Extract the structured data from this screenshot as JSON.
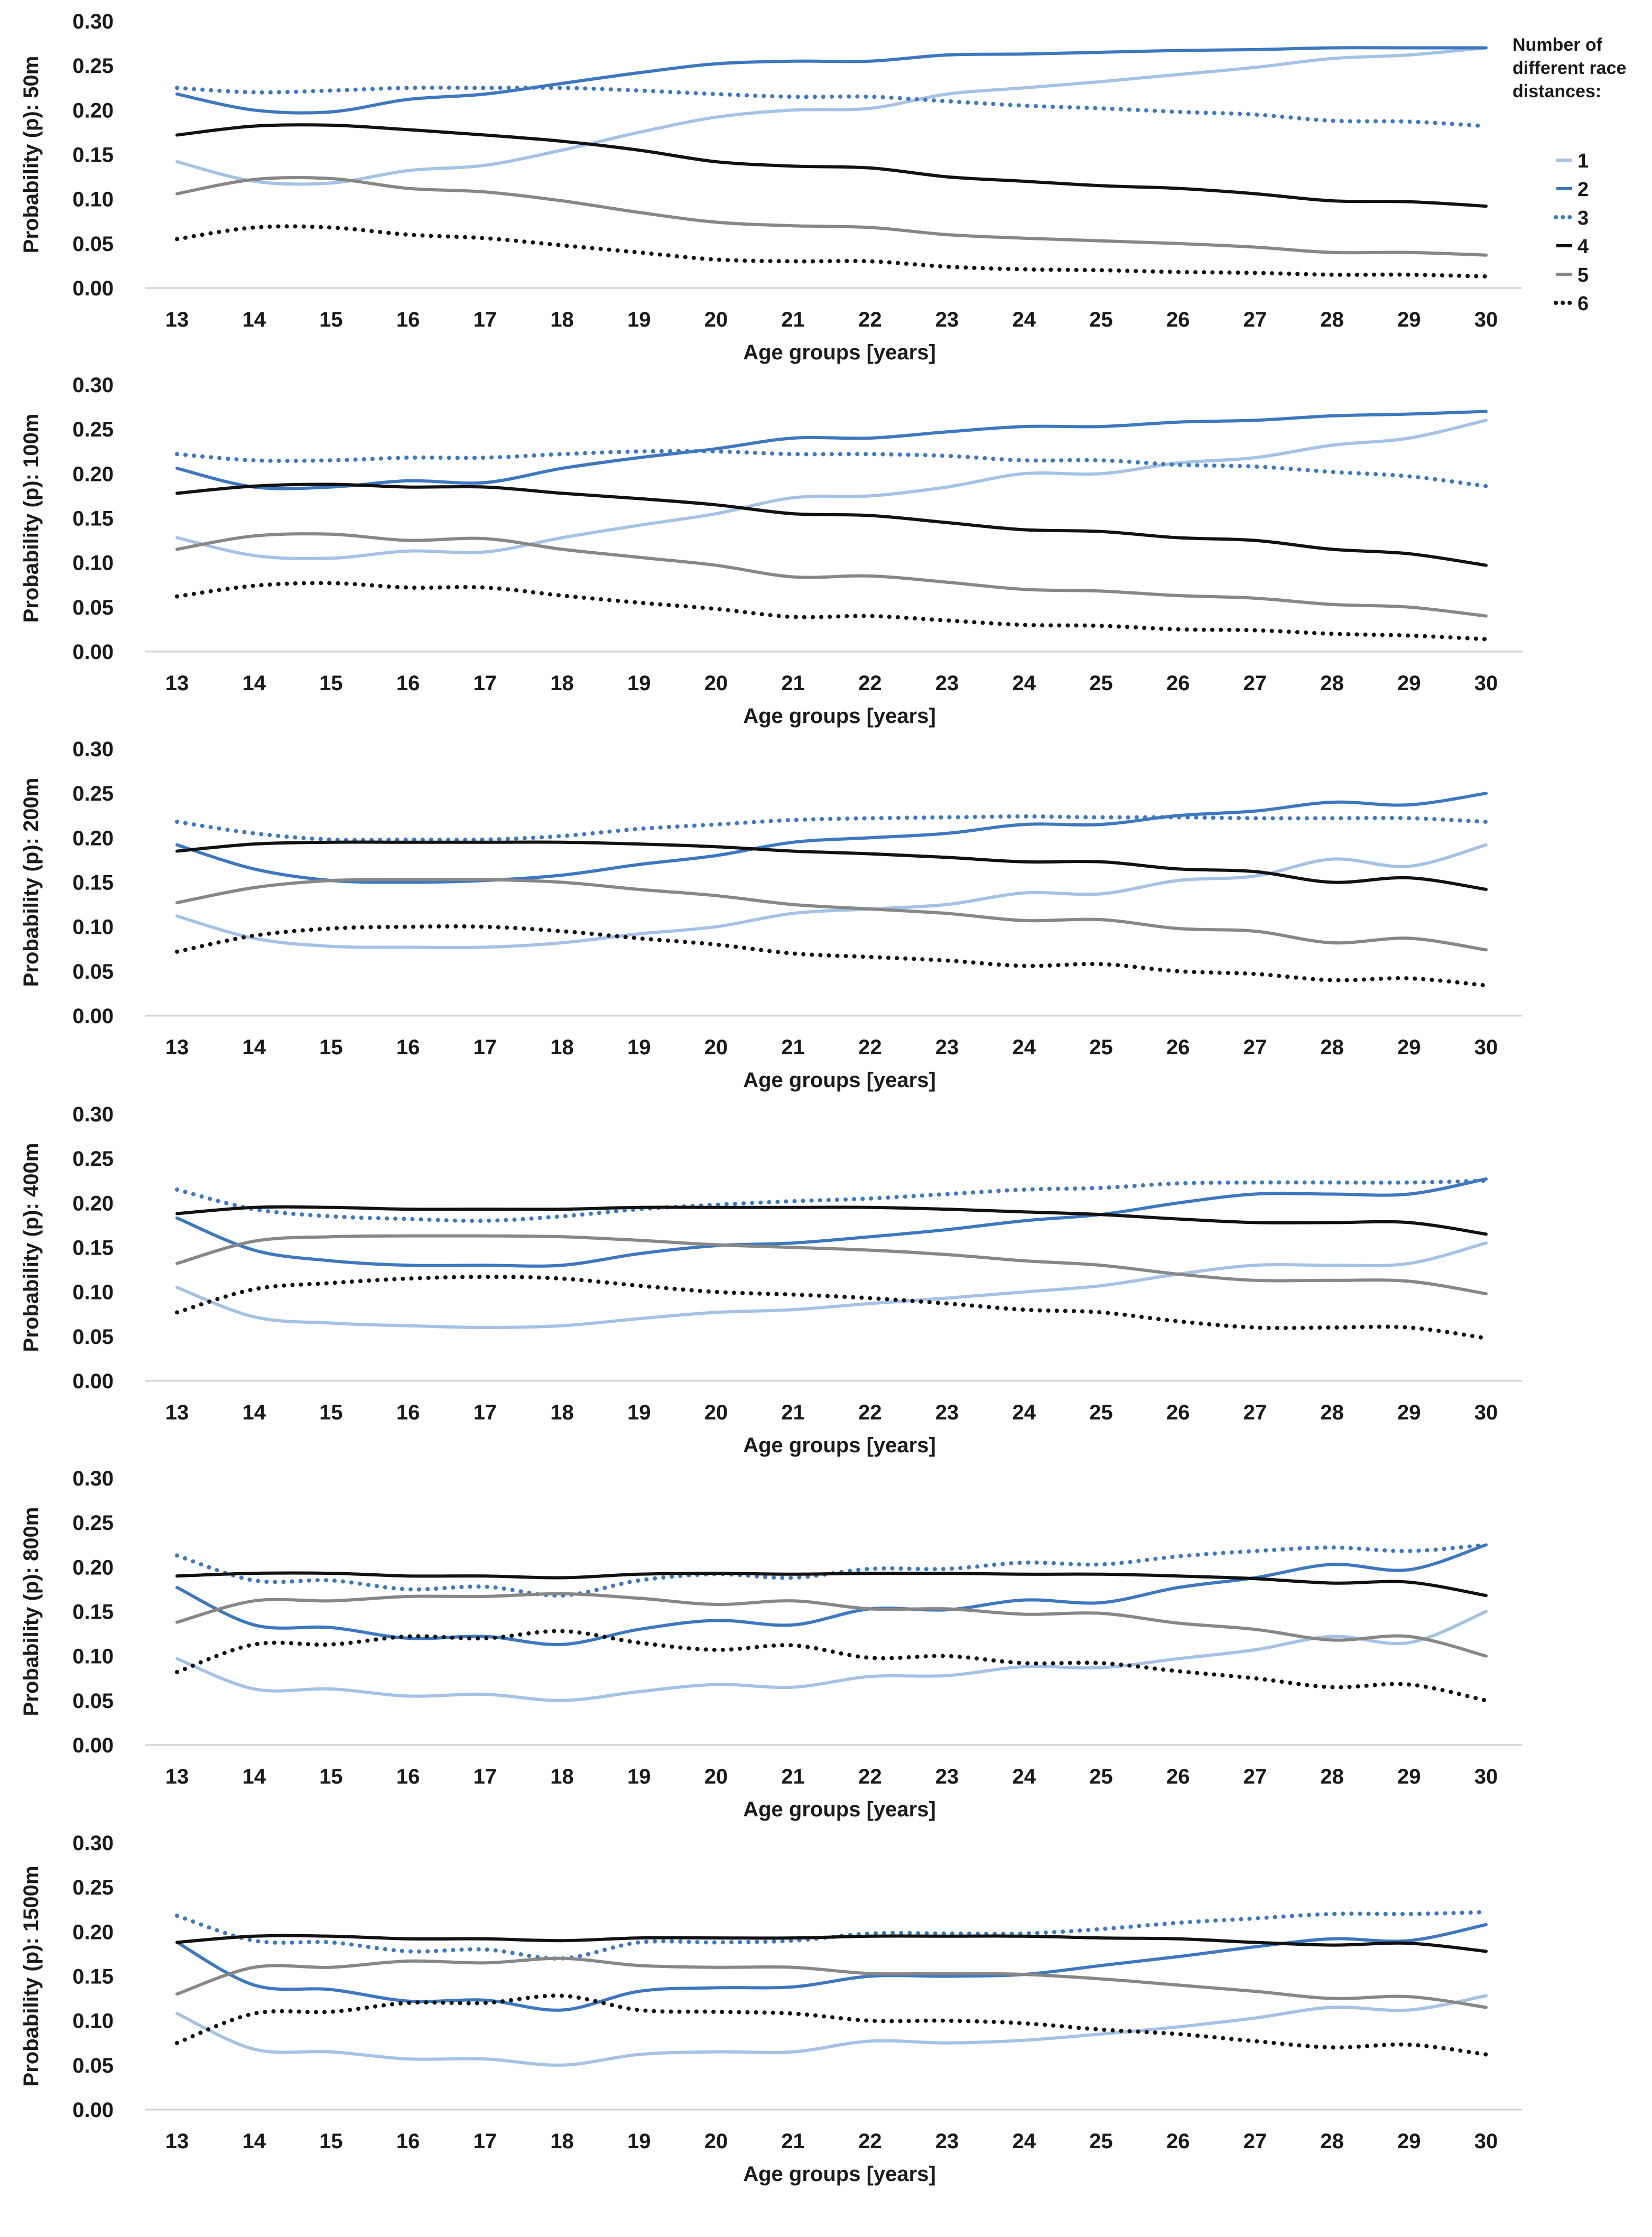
{
  "legend": {
    "title_lines": [
      "Number of",
      "different race",
      "distances:"
    ],
    "items": [
      "1",
      "2",
      "3",
      "4",
      "5",
      "6"
    ]
  },
  "series_styles": [
    {
      "name": "1",
      "color": "#a4c2e6",
      "dash": "solid"
    },
    {
      "name": "2",
      "color": "#3d78bf",
      "dash": "solid"
    },
    {
      "name": "3",
      "color": "#3d78bf",
      "dash": "dotted"
    },
    {
      "name": "4",
      "color": "#111111",
      "dash": "solid"
    },
    {
      "name": "5",
      "color": "#878787",
      "dash": "solid"
    },
    {
      "name": "6",
      "color": "#111111",
      "dash": "dotted"
    }
  ],
  "chart_data": [
    {
      "type": "line",
      "title": "",
      "xlabel": "Age groups [years]",
      "ylabel": "Probability (p): 50m",
      "ylim": [
        0,
        0.3
      ],
      "yticks": [
        "0.00",
        "0.05",
        "0.10",
        "0.15",
        "0.20",
        "0.25",
        "0.30"
      ],
      "categories": [
        "13",
        "14",
        "15",
        "16",
        "17",
        "18",
        "19",
        "20",
        "21",
        "22",
        "23",
        "24",
        "25",
        "26",
        "27",
        "28",
        "29",
        "30"
      ],
      "series": [
        {
          "name": "1",
          "values": [
            0.142,
            0.12,
            0.118,
            0.132,
            0.138,
            0.155,
            0.175,
            0.192,
            0.2,
            0.202,
            0.218,
            0.225,
            0.232,
            0.24,
            0.248,
            0.258,
            0.262,
            0.27
          ]
        },
        {
          "name": "2",
          "values": [
            0.218,
            0.2,
            0.198,
            0.212,
            0.218,
            0.23,
            0.242,
            0.252,
            0.255,
            0.255,
            0.262,
            0.263,
            0.265,
            0.267,
            0.268,
            0.27,
            0.27,
            0.27
          ]
        },
        {
          "name": "3",
          "values": [
            0.225,
            0.22,
            0.222,
            0.225,
            0.225,
            0.225,
            0.222,
            0.218,
            0.215,
            0.215,
            0.21,
            0.205,
            0.202,
            0.198,
            0.195,
            0.188,
            0.187,
            0.182
          ]
        },
        {
          "name": "4",
          "values": [
            0.172,
            0.182,
            0.183,
            0.178,
            0.172,
            0.165,
            0.155,
            0.142,
            0.137,
            0.135,
            0.125,
            0.12,
            0.115,
            0.112,
            0.106,
            0.098,
            0.097,
            0.092
          ]
        },
        {
          "name": "5",
          "values": [
            0.106,
            0.122,
            0.123,
            0.112,
            0.108,
            0.098,
            0.085,
            0.074,
            0.07,
            0.068,
            0.06,
            0.056,
            0.053,
            0.05,
            0.046,
            0.04,
            0.04,
            0.037
          ]
        },
        {
          "name": "6",
          "values": [
            0.055,
            0.068,
            0.068,
            0.06,
            0.056,
            0.048,
            0.04,
            0.032,
            0.03,
            0.03,
            0.024,
            0.021,
            0.02,
            0.018,
            0.017,
            0.015,
            0.015,
            0.013
          ]
        }
      ]
    },
    {
      "type": "line",
      "title": "",
      "xlabel": "Age groups [years]",
      "ylabel": "Probability (p): 100m",
      "ylim": [
        0,
        0.3
      ],
      "yticks": [
        "0.00",
        "0.05",
        "0.10",
        "0.15",
        "0.20",
        "0.25",
        "0.30"
      ],
      "categories": [
        "13",
        "14",
        "15",
        "16",
        "17",
        "18",
        "19",
        "20",
        "21",
        "22",
        "23",
        "24",
        "25",
        "26",
        "27",
        "28",
        "29",
        "30"
      ],
      "series": [
        {
          "name": "1",
          "values": [
            0.128,
            0.108,
            0.105,
            0.113,
            0.112,
            0.128,
            0.142,
            0.155,
            0.173,
            0.175,
            0.185,
            0.2,
            0.2,
            0.212,
            0.218,
            0.232,
            0.24,
            0.26
          ]
        },
        {
          "name": "2",
          "values": [
            0.206,
            0.185,
            0.185,
            0.192,
            0.19,
            0.206,
            0.218,
            0.228,
            0.24,
            0.24,
            0.247,
            0.253,
            0.253,
            0.258,
            0.26,
            0.265,
            0.267,
            0.27
          ]
        },
        {
          "name": "3",
          "values": [
            0.222,
            0.215,
            0.215,
            0.218,
            0.218,
            0.222,
            0.225,
            0.225,
            0.222,
            0.222,
            0.22,
            0.215,
            0.215,
            0.21,
            0.208,
            0.202,
            0.197,
            0.186
          ]
        },
        {
          "name": "4",
          "values": [
            0.178,
            0.186,
            0.188,
            0.185,
            0.185,
            0.178,
            0.172,
            0.165,
            0.155,
            0.153,
            0.145,
            0.137,
            0.135,
            0.128,
            0.125,
            0.115,
            0.11,
            0.097
          ]
        },
        {
          "name": "5",
          "values": [
            0.115,
            0.13,
            0.132,
            0.125,
            0.127,
            0.115,
            0.106,
            0.097,
            0.084,
            0.085,
            0.078,
            0.07,
            0.068,
            0.063,
            0.06,
            0.053,
            0.05,
            0.04
          ]
        },
        {
          "name": "6",
          "values": [
            0.062,
            0.074,
            0.077,
            0.072,
            0.072,
            0.063,
            0.055,
            0.048,
            0.039,
            0.04,
            0.035,
            0.03,
            0.029,
            0.025,
            0.024,
            0.02,
            0.018,
            0.014
          ]
        }
      ]
    },
    {
      "type": "line",
      "title": "",
      "xlabel": "Age groups [years]",
      "ylabel": "Probability (p): 200m",
      "ylim": [
        0,
        0.3
      ],
      "yticks": [
        "0.00",
        "0.05",
        "0.10",
        "0.15",
        "0.20",
        "0.25",
        "0.30"
      ],
      "categories": [
        "13",
        "14",
        "15",
        "16",
        "17",
        "18",
        "19",
        "20",
        "21",
        "22",
        "23",
        "24",
        "25",
        "26",
        "27",
        "28",
        "29",
        "30"
      ],
      "series": [
        {
          "name": "1",
          "values": [
            0.112,
            0.087,
            0.078,
            0.077,
            0.077,
            0.082,
            0.092,
            0.1,
            0.115,
            0.12,
            0.125,
            0.138,
            0.137,
            0.152,
            0.157,
            0.176,
            0.168,
            0.192
          ]
        },
        {
          "name": "2",
          "values": [
            0.192,
            0.165,
            0.152,
            0.15,
            0.152,
            0.158,
            0.17,
            0.18,
            0.195,
            0.2,
            0.205,
            0.215,
            0.215,
            0.225,
            0.23,
            0.24,
            0.237,
            0.25
          ]
        },
        {
          "name": "3",
          "values": [
            0.218,
            0.205,
            0.198,
            0.198,
            0.198,
            0.202,
            0.21,
            0.215,
            0.22,
            0.222,
            0.223,
            0.224,
            0.223,
            0.223,
            0.222,
            0.222,
            0.222,
            0.218
          ]
        },
        {
          "name": "4",
          "values": [
            0.185,
            0.193,
            0.195,
            0.195,
            0.195,
            0.195,
            0.193,
            0.19,
            0.185,
            0.182,
            0.178,
            0.173,
            0.173,
            0.165,
            0.162,
            0.15,
            0.155,
            0.142
          ]
        },
        {
          "name": "5",
          "values": [
            0.127,
            0.144,
            0.152,
            0.153,
            0.153,
            0.15,
            0.142,
            0.135,
            0.125,
            0.12,
            0.115,
            0.107,
            0.108,
            0.098,
            0.095,
            0.082,
            0.087,
            0.074
          ]
        },
        {
          "name": "6",
          "values": [
            0.072,
            0.09,
            0.098,
            0.1,
            0.1,
            0.095,
            0.087,
            0.08,
            0.07,
            0.066,
            0.062,
            0.056,
            0.058,
            0.05,
            0.047,
            0.04,
            0.042,
            0.034
          ]
        }
      ]
    },
    {
      "type": "line",
      "title": "",
      "xlabel": "Age groups [years]",
      "ylabel": "Probability (p): 400m",
      "ylim": [
        0,
        0.3
      ],
      "yticks": [
        "0.00",
        "0.05",
        "0.10",
        "0.15",
        "0.20",
        "0.25",
        "0.30"
      ],
      "categories": [
        "13",
        "14",
        "15",
        "16",
        "17",
        "18",
        "19",
        "20",
        "21",
        "22",
        "23",
        "24",
        "25",
        "26",
        "27",
        "28",
        "29",
        "30"
      ],
      "series": [
        {
          "name": "1",
          "values": [
            0.105,
            0.072,
            0.065,
            0.062,
            0.06,
            0.062,
            0.07,
            0.077,
            0.08,
            0.087,
            0.093,
            0.1,
            0.107,
            0.12,
            0.13,
            0.13,
            0.132,
            0.155
          ]
        },
        {
          "name": "2",
          "values": [
            0.183,
            0.147,
            0.135,
            0.13,
            0.13,
            0.13,
            0.143,
            0.152,
            0.155,
            0.162,
            0.17,
            0.18,
            0.187,
            0.2,
            0.21,
            0.21,
            0.21,
            0.227
          ]
        },
        {
          "name": "3",
          "values": [
            0.215,
            0.193,
            0.185,
            0.182,
            0.18,
            0.185,
            0.193,
            0.198,
            0.202,
            0.205,
            0.21,
            0.215,
            0.217,
            0.222,
            0.223,
            0.223,
            0.223,
            0.225
          ]
        },
        {
          "name": "4",
          "values": [
            0.188,
            0.195,
            0.195,
            0.193,
            0.193,
            0.193,
            0.195,
            0.195,
            0.195,
            0.195,
            0.193,
            0.19,
            0.187,
            0.182,
            0.178,
            0.178,
            0.178,
            0.165
          ]
        },
        {
          "name": "5",
          "values": [
            0.132,
            0.157,
            0.162,
            0.163,
            0.163,
            0.162,
            0.158,
            0.153,
            0.15,
            0.147,
            0.142,
            0.135,
            0.13,
            0.12,
            0.113,
            0.113,
            0.112,
            0.098
          ]
        },
        {
          "name": "6",
          "values": [
            0.077,
            0.103,
            0.11,
            0.115,
            0.117,
            0.115,
            0.107,
            0.1,
            0.097,
            0.093,
            0.087,
            0.08,
            0.077,
            0.067,
            0.06,
            0.06,
            0.06,
            0.048
          ]
        }
      ]
    },
    {
      "type": "line",
      "title": "",
      "xlabel": "Age groups [years]",
      "ylabel": "Probability (p): 800m",
      "ylim": [
        0,
        0.3
      ],
      "yticks": [
        "0.00",
        "0.05",
        "0.10",
        "0.15",
        "0.20",
        "0.25",
        "0.30"
      ],
      "categories": [
        "13",
        "14",
        "15",
        "16",
        "17",
        "18",
        "19",
        "20",
        "21",
        "22",
        "23",
        "24",
        "25",
        "26",
        "27",
        "28",
        "29",
        "30"
      ],
      "series": [
        {
          "name": "1",
          "values": [
            0.097,
            0.063,
            0.063,
            0.055,
            0.057,
            0.05,
            0.06,
            0.068,
            0.065,
            0.077,
            0.078,
            0.088,
            0.087,
            0.097,
            0.107,
            0.122,
            0.115,
            0.15
          ]
        },
        {
          "name": "2",
          "values": [
            0.177,
            0.135,
            0.132,
            0.12,
            0.122,
            0.113,
            0.13,
            0.14,
            0.135,
            0.153,
            0.152,
            0.163,
            0.16,
            0.177,
            0.188,
            0.203,
            0.197,
            0.225
          ]
        },
        {
          "name": "3",
          "values": [
            0.213,
            0.185,
            0.185,
            0.175,
            0.178,
            0.168,
            0.185,
            0.192,
            0.188,
            0.198,
            0.198,
            0.205,
            0.203,
            0.212,
            0.218,
            0.222,
            0.218,
            0.225
          ]
        },
        {
          "name": "4",
          "values": [
            0.19,
            0.193,
            0.193,
            0.19,
            0.19,
            0.188,
            0.192,
            0.193,
            0.192,
            0.193,
            0.193,
            0.192,
            0.192,
            0.19,
            0.187,
            0.182,
            0.183,
            0.168
          ]
        },
        {
          "name": "5",
          "values": [
            0.138,
            0.162,
            0.162,
            0.167,
            0.167,
            0.17,
            0.165,
            0.158,
            0.162,
            0.153,
            0.153,
            0.147,
            0.148,
            0.137,
            0.13,
            0.118,
            0.122,
            0.1
          ]
        },
        {
          "name": "6",
          "values": [
            0.082,
            0.113,
            0.113,
            0.122,
            0.12,
            0.128,
            0.115,
            0.107,
            0.112,
            0.098,
            0.1,
            0.092,
            0.092,
            0.083,
            0.075,
            0.065,
            0.068,
            0.05
          ]
        }
      ]
    },
    {
      "type": "line",
      "title": "",
      "xlabel": "Age groups [years]",
      "ylabel": "Probability (p):  1500m",
      "ylim": [
        0,
        0.3
      ],
      "yticks": [
        "0.00",
        "0.05",
        "0.10",
        "0.15",
        "0.20",
        "0.25",
        "0.30"
      ],
      "categories": [
        "13",
        "14",
        "15",
        "16",
        "17",
        "18",
        "19",
        "20",
        "21",
        "22",
        "23",
        "24",
        "25",
        "26",
        "27",
        "28",
        "29",
        "30"
      ],
      "series": [
        {
          "name": "1",
          "values": [
            0.108,
            0.068,
            0.065,
            0.057,
            0.057,
            0.05,
            0.062,
            0.065,
            0.065,
            0.077,
            0.075,
            0.078,
            0.085,
            0.093,
            0.103,
            0.115,
            0.112,
            0.128
          ]
        },
        {
          "name": "2",
          "values": [
            0.188,
            0.14,
            0.135,
            0.122,
            0.123,
            0.112,
            0.133,
            0.137,
            0.138,
            0.15,
            0.15,
            0.152,
            0.162,
            0.172,
            0.183,
            0.192,
            0.19,
            0.208
          ]
        },
        {
          "name": "3",
          "values": [
            0.218,
            0.19,
            0.188,
            0.178,
            0.18,
            0.17,
            0.188,
            0.188,
            0.19,
            0.198,
            0.198,
            0.198,
            0.203,
            0.21,
            0.215,
            0.22,
            0.22,
            0.222
          ]
        },
        {
          "name": "4",
          "values": [
            0.188,
            0.195,
            0.195,
            0.192,
            0.192,
            0.19,
            0.193,
            0.193,
            0.193,
            0.195,
            0.195,
            0.195,
            0.193,
            0.192,
            0.188,
            0.185,
            0.187,
            0.178
          ]
        },
        {
          "name": "5",
          "values": [
            0.13,
            0.16,
            0.16,
            0.167,
            0.165,
            0.17,
            0.162,
            0.16,
            0.16,
            0.153,
            0.153,
            0.152,
            0.147,
            0.14,
            0.133,
            0.125,
            0.127,
            0.115
          ]
        },
        {
          "name": "6",
          "values": [
            0.075,
            0.108,
            0.11,
            0.12,
            0.12,
            0.128,
            0.112,
            0.11,
            0.108,
            0.1,
            0.1,
            0.097,
            0.09,
            0.085,
            0.077,
            0.07,
            0.073,
            0.062
          ]
        }
      ]
    }
  ]
}
